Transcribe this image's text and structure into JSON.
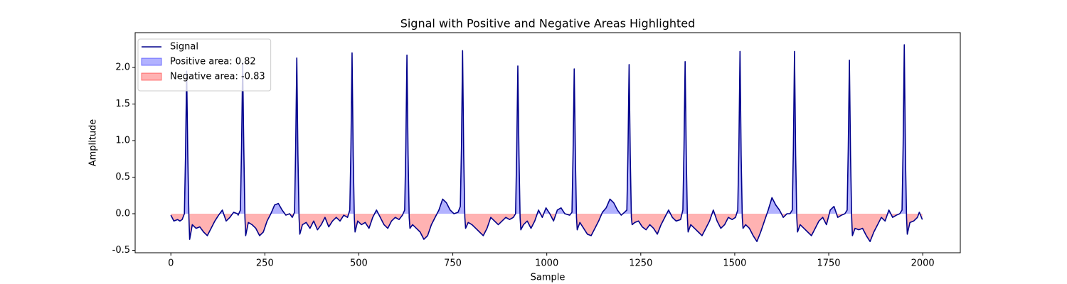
{
  "chart_data": {
    "type": "line",
    "title": "Signal with Positive and Negative Areas Highlighted",
    "xlabel": "Sample",
    "ylabel": "Amplitude",
    "x": [
      0,
      8,
      18,
      24,
      30,
      36,
      39,
      42,
      45,
      48,
      50,
      57,
      67,
      77,
      87,
      97,
      107,
      117,
      127,
      137,
      147,
      157,
      167,
      177,
      179,
      185,
      188,
      191,
      194,
      197,
      199,
      206,
      216,
      226,
      236,
      246,
      256,
      266,
      276,
      286,
      296,
      306,
      316,
      323,
      329,
      332,
      335,
      338,
      341,
      343,
      350,
      360,
      370,
      380,
      390,
      400,
      410,
      420,
      430,
      440,
      450,
      460,
      470,
      476,
      479,
      482,
      485,
      488,
      490,
      497,
      507,
      517,
      527,
      537,
      547,
      557,
      567,
      577,
      587,
      597,
      607,
      616,
      622,
      625,
      628,
      631,
      634,
      636,
      643,
      653,
      663,
      673,
      683,
      693,
      703,
      713,
      723,
      733,
      743,
      753,
      764,
      770,
      773,
      776,
      779,
      782,
      784,
      791,
      801,
      811,
      821,
      831,
      841,
      851,
      861,
      871,
      881,
      891,
      901,
      911,
      917,
      920,
      923,
      926,
      929,
      931,
      938,
      948,
      958,
      968,
      978,
      988,
      998,
      1008,
      1018,
      1028,
      1038,
      1048,
      1061,
      1067,
      1070,
      1073,
      1076,
      1079,
      1081,
      1088,
      1098,
      1108,
      1118,
      1128,
      1138,
      1148,
      1158,
      1168,
      1178,
      1188,
      1198,
      1207,
      1213,
      1216,
      1219,
      1222,
      1225,
      1227,
      1234,
      1244,
      1254,
      1264,
      1274,
      1284,
      1294,
      1304,
      1314,
      1324,
      1334,
      1344,
      1356,
      1362,
      1365,
      1368,
      1371,
      1374,
      1376,
      1383,
      1393,
      1403,
      1413,
      1423,
      1433,
      1443,
      1453,
      1463,
      1473,
      1483,
      1493,
      1502,
      1508,
      1511,
      1514,
      1517,
      1520,
      1522,
      1529,
      1539,
      1549,
      1559,
      1569,
      1579,
      1589,
      1599,
      1609,
      1619,
      1629,
      1639,
      1647,
      1653,
      1656,
      1659,
      1662,
      1665,
      1667,
      1674,
      1684,
      1694,
      1704,
      1714,
      1724,
      1734,
      1744,
      1754,
      1764,
      1774,
      1784,
      1793,
      1799,
      1802,
      1805,
      1808,
      1811,
      1813,
      1820,
      1830,
      1840,
      1850,
      1860,
      1870,
      1880,
      1890,
      1900,
      1910,
      1920,
      1930,
      1939,
      1945,
      1948,
      1951,
      1954,
      1957,
      1959,
      1966,
      1976,
      1986,
      1991,
      1999
    ],
    "series": [
      {
        "name": "Signal",
        "color": "#00008b",
        "values": [
          -0.02,
          -0.1,
          -0.08,
          -0.1,
          -0.08,
          0.0,
          0.8,
          1.95,
          0.8,
          -0.05,
          -0.35,
          -0.15,
          -0.2,
          -0.18,
          -0.25,
          -0.3,
          -0.2,
          -0.1,
          -0.02,
          0.05,
          -0.1,
          -0.05,
          0.02,
          0.0,
          -0.02,
          0.05,
          0.9,
          2.06,
          0.9,
          -0.05,
          -0.3,
          -0.12,
          -0.15,
          -0.2,
          -0.3,
          -0.25,
          -0.1,
          0.0,
          0.12,
          0.14,
          0.05,
          -0.02,
          0.0,
          -0.05,
          0.02,
          0.9,
          2.13,
          0.8,
          -0.05,
          -0.28,
          -0.15,
          -0.12,
          -0.2,
          -0.1,
          -0.22,
          -0.15,
          -0.05,
          -0.18,
          -0.1,
          -0.05,
          -0.1,
          -0.02,
          -0.05,
          0.05,
          0.9,
          2.2,
          0.8,
          -0.05,
          -0.25,
          -0.1,
          -0.15,
          -0.12,
          -0.2,
          -0.05,
          0.05,
          -0.05,
          -0.15,
          -0.2,
          -0.1,
          -0.05,
          -0.08,
          -0.02,
          0.05,
          0.9,
          2.17,
          0.8,
          -0.05,
          -0.2,
          -0.15,
          -0.2,
          -0.25,
          -0.35,
          -0.3,
          -0.15,
          -0.05,
          0.05,
          0.2,
          0.15,
          0.05,
          0.0,
          0.02,
          0.1,
          0.9,
          2.23,
          0.8,
          -0.05,
          -0.2,
          -0.12,
          -0.15,
          -0.2,
          -0.25,
          -0.3,
          -0.2,
          -0.05,
          -0.1,
          -0.15,
          -0.1,
          -0.05,
          -0.08,
          -0.05,
          0.0,
          0.85,
          2.02,
          0.8,
          -0.05,
          -0.22,
          -0.15,
          -0.1,
          -0.2,
          -0.1,
          0.05,
          -0.05,
          0.08,
          0.0,
          -0.1,
          0.05,
          0.08,
          0.0,
          -0.02,
          0.02,
          0.85,
          1.98,
          0.8,
          -0.05,
          -0.22,
          -0.12,
          -0.2,
          -0.28,
          -0.3,
          -0.2,
          -0.1,
          0.02,
          0.08,
          0.2,
          0.15,
          0.05,
          -0.02,
          0.02,
          0.05,
          0.85,
          2.04,
          0.8,
          -0.05,
          -0.15,
          -0.12,
          -0.1,
          -0.18,
          -0.22,
          -0.15,
          -0.2,
          -0.28,
          -0.15,
          -0.05,
          0.05,
          -0.05,
          -0.1,
          -0.08,
          0.05,
          0.9,
          2.08,
          0.8,
          -0.05,
          -0.25,
          -0.15,
          -0.2,
          -0.25,
          -0.3,
          -0.2,
          -0.1,
          0.05,
          -0.1,
          -0.2,
          -0.15,
          -0.05,
          -0.08,
          -0.05,
          0.05,
          0.9,
          2.22,
          0.8,
          -0.05,
          -0.2,
          -0.15,
          -0.2,
          -0.3,
          -0.38,
          -0.25,
          -0.1,
          0.05,
          0.22,
          0.12,
          0.05,
          -0.05,
          0.0,
          0.0,
          0.05,
          0.9,
          2.22,
          0.8,
          -0.05,
          -0.25,
          -0.15,
          -0.2,
          -0.25,
          -0.3,
          -0.2,
          -0.1,
          -0.05,
          -0.15,
          0.05,
          0.1,
          -0.05,
          -0.02,
          0.0,
          0.05,
          0.9,
          2.1,
          0.8,
          -0.05,
          -0.3,
          -0.2,
          -0.22,
          -0.2,
          -0.3,
          -0.38,
          -0.25,
          -0.15,
          -0.05,
          -0.1,
          0.05,
          -0.05,
          -0.02,
          0.0,
          0.05,
          0.95,
          2.31,
          0.8,
          -0.05,
          -0.28,
          -0.12,
          -0.1,
          -0.05,
          0.02,
          -0.08
        ]
      }
    ],
    "areas": [
      {
        "name": "Positive area: 0.82",
        "color": "#0000ff",
        "alpha": 0.3
      },
      {
        "name": "Negative area: -0.83",
        "color": "#ff0000",
        "alpha": 0.3
      }
    ],
    "xlim": [
      -95,
      2100
    ],
    "ylim": [
      -0.534,
      2.476
    ],
    "xticks": [
      0,
      250,
      500,
      750,
      1000,
      1250,
      1500,
      1750,
      2000
    ],
    "yticks": [
      -0.5,
      {
        "value": 0,
        "label": "0.0"
      },
      0.5,
      {
        "value": 1,
        "label": "1.0"
      },
      1.5,
      {
        "value": 2,
        "label": "2.0"
      }
    ],
    "legend": "upper left"
  }
}
